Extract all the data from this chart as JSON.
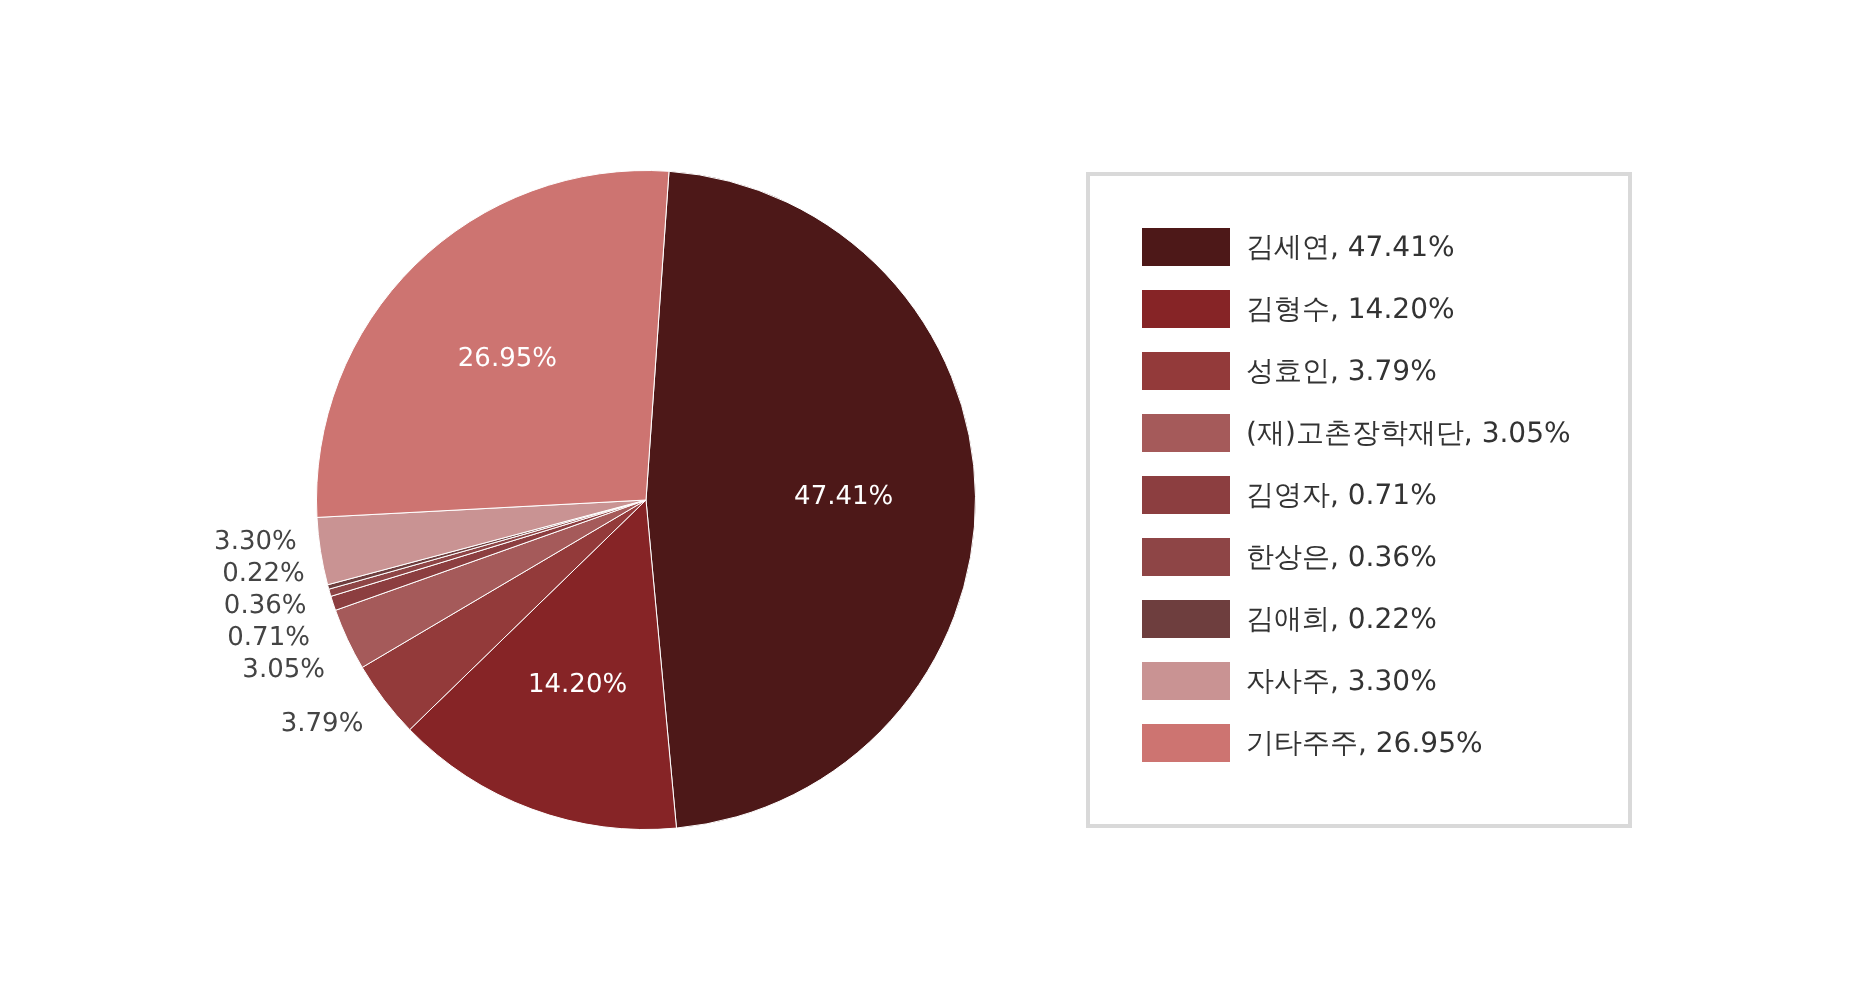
{
  "chart_data": {
    "type": "pie",
    "categories": [
      "김세연",
      "김형수",
      "성효인",
      "(재)고촌장학재단",
      "김영자",
      "한상은",
      "김애희",
      "자사주",
      "기타주주"
    ],
    "values": [
      47.41,
      14.2,
      3.79,
      3.05,
      0.71,
      0.36,
      0.22,
      3.3,
      26.95
    ],
    "value_labels": [
      "47.41%",
      "14.20%",
      "3.79%",
      "3.05%",
      "0.71%",
      "0.36%",
      "0.22%",
      "3.30%",
      "26.95%"
    ],
    "colors": [
      "#4d1818",
      "#862426",
      "#933a3a",
      "#a55a5a",
      "#8c3e40",
      "#8e4546",
      "#6e3e3e",
      "#c99393",
      "#cd7471"
    ],
    "legend": "right"
  }
}
